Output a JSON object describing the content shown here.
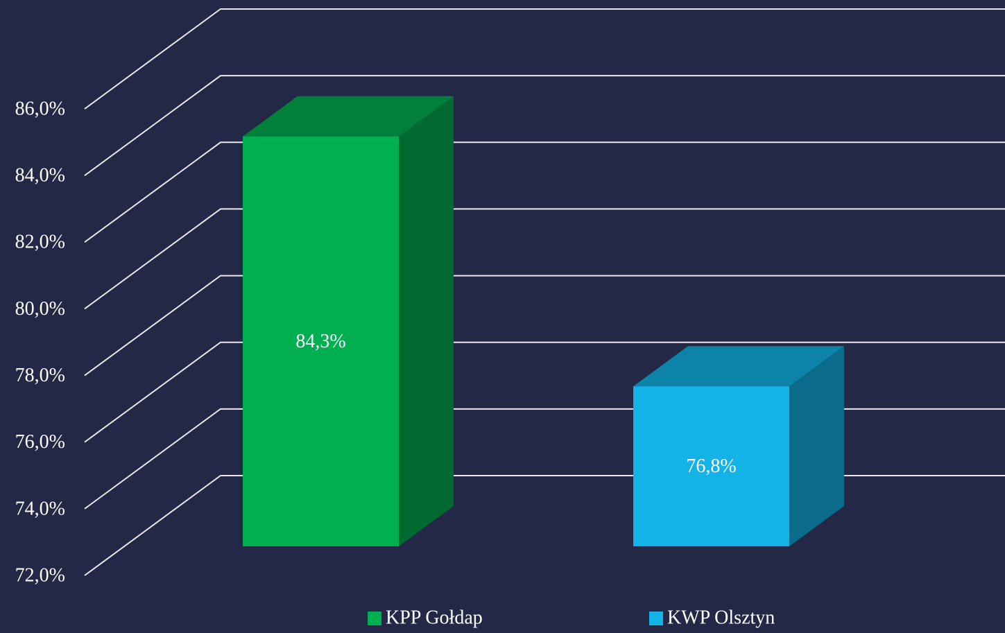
{
  "chart_data": {
    "type": "bar3d",
    "series": [
      {
        "name": "KPP Gołdap",
        "color": "#00b050",
        "values": [
          84.3
        ],
        "value_labels": [
          "84,3%"
        ]
      },
      {
        "name": "KWP Olsztyn",
        "color": "#13b3e8",
        "values": [
          76.8
        ],
        "value_labels": [
          "76,8%"
        ]
      }
    ],
    "ylim": [
      72,
      86
    ],
    "yticks": [
      {
        "value": 72,
        "label": "72,0%"
      },
      {
        "value": 74,
        "label": "74,0%"
      },
      {
        "value": 76,
        "label": "76,0%"
      },
      {
        "value": 78,
        "label": "78,0%"
      },
      {
        "value": 80,
        "label": "80,0%"
      },
      {
        "value": 82,
        "label": "82,0%"
      },
      {
        "value": 84,
        "label": "84,0%"
      },
      {
        "value": 86,
        "label": "86,0%"
      }
    ],
    "grid": true,
    "legend": "bottom"
  }
}
